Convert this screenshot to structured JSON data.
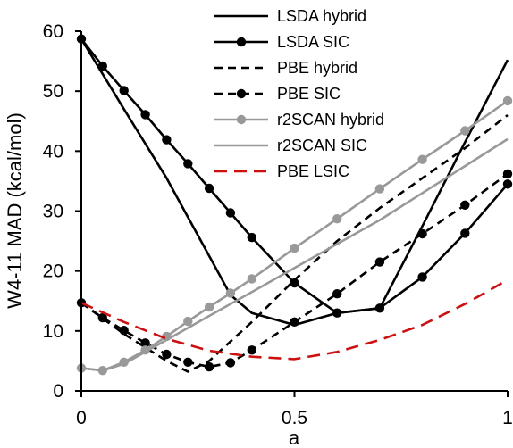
{
  "chart_data": {
    "type": "line",
    "title": "",
    "xlabel": "a",
    "ylabel": "W4-11 MAD (kcal/mol)",
    "xlim": [
      0,
      1
    ],
    "ylim": [
      0,
      60
    ],
    "xticks": [
      0,
      0.5,
      1
    ],
    "xtick_labels": [
      "0",
      "0.5",
      "1"
    ],
    "yticks": [
      0,
      10,
      20,
      30,
      40,
      50,
      60
    ],
    "ytick_labels": [
      "0",
      "10",
      "20",
      "30",
      "40",
      "50",
      "60"
    ],
    "grid": false,
    "legend_position": "top-right",
    "series": [
      {
        "name": "LSDA hybrid",
        "color": "#000000",
        "dash": "solid",
        "marker": "none",
        "x": [
          0,
          0.1,
          0.2,
          0.3,
          0.35,
          0.4,
          0.5,
          0.6,
          0.7,
          0.8,
          0.9,
          1.0
        ],
        "y": [
          58.7,
          47.0,
          35.5,
          22.5,
          16.0,
          13.0,
          11.0,
          13.0,
          13.8,
          27.5,
          41.5,
          55.2
        ]
      },
      {
        "name": "LSDA SIC",
        "color": "#000000",
        "dash": "solid",
        "marker": "circle",
        "x": [
          0,
          0.05,
          0.1,
          0.15,
          0.2,
          0.25,
          0.3,
          0.35,
          0.4,
          0.5,
          0.6,
          0.7,
          0.8,
          0.9,
          1.0
        ],
        "y": [
          58.7,
          54.2,
          50.1,
          46.1,
          41.9,
          37.9,
          33.8,
          29.7,
          25.6,
          18.0,
          13.0,
          13.8,
          19.0,
          26.3,
          34.5
        ]
      },
      {
        "name": "PBE hybrid",
        "color": "#000000",
        "dash": "dashed",
        "marker": "none",
        "x": [
          0,
          0.1,
          0.2,
          0.25,
          0.3,
          0.4,
          0.5,
          0.6,
          0.7,
          0.8,
          0.9,
          1.0
        ],
        "y": [
          14.7,
          9.5,
          5.0,
          3.2,
          5.0,
          11.5,
          18.5,
          25.0,
          30.5,
          35.5,
          40.5,
          46.0
        ]
      },
      {
        "name": "PBE SIC",
        "color": "#000000",
        "dash": "dashed",
        "marker": "circle",
        "x": [
          0,
          0.05,
          0.1,
          0.15,
          0.2,
          0.25,
          0.3,
          0.35,
          0.4,
          0.5,
          0.6,
          0.7,
          0.8,
          0.9,
          1.0
        ],
        "y": [
          14.7,
          12.2,
          10.1,
          8.0,
          6.1,
          4.8,
          4.0,
          4.7,
          6.8,
          11.5,
          16.2,
          21.5,
          26.2,
          31.0,
          36.2
        ]
      },
      {
        "name": "r2SCAN hybrid",
        "color": "#999999",
        "dash": "solid",
        "marker": "circle",
        "x": [
          0,
          0.05,
          0.1,
          0.15,
          0.2,
          0.25,
          0.3,
          0.35,
          0.4,
          0.5,
          0.6,
          0.7,
          0.8,
          0.9,
          1.0
        ],
        "y": [
          3.8,
          3.4,
          4.8,
          6.8,
          9.1,
          11.6,
          14.0,
          16.3,
          18.7,
          23.8,
          28.7,
          33.7,
          38.6,
          43.4,
          48.4
        ]
      },
      {
        "name": "r2SCAN SIC",
        "color": "#999999",
        "dash": "solid",
        "marker": "none",
        "x": [
          0,
          0.05,
          0.1,
          0.2,
          0.3,
          0.4,
          0.5,
          0.6,
          0.7,
          0.8,
          0.9,
          1.0
        ],
        "y": [
          3.8,
          3.4,
          4.5,
          8.5,
          12.5,
          16.5,
          20.5,
          24.5,
          28.5,
          33.0,
          37.5,
          42.0
        ]
      },
      {
        "name": "PBE LSIC",
        "color": "#cc1111",
        "dash": "dashed-long",
        "marker": "none",
        "x": [
          0,
          0.1,
          0.2,
          0.3,
          0.4,
          0.5,
          0.6,
          0.7,
          0.8,
          0.9,
          1.0
        ],
        "y": [
          14.7,
          11.5,
          8.7,
          6.7,
          5.7,
          5.3,
          6.5,
          8.5,
          11.0,
          14.5,
          18.5
        ]
      }
    ]
  }
}
